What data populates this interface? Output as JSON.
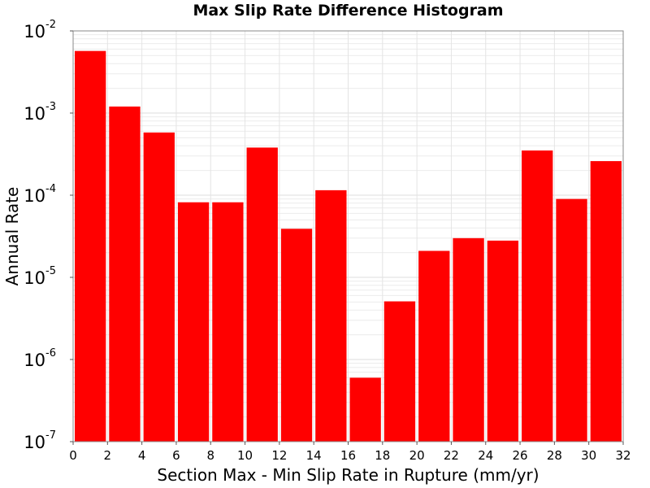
{
  "chart_data": {
    "type": "bar",
    "title": "Max Slip Rate Difference Histogram",
    "xlabel": "Section Max - Min Slip Rate in Rupture (mm/yr)",
    "ylabel": "Annual Rate",
    "xlim": [
      0,
      32
    ],
    "ylim": [
      1e-07,
      0.01
    ],
    "y_scale": "log",
    "grid": true,
    "bar_color": "#ff0000",
    "bar_width": 2,
    "x_ticks": [
      0,
      2,
      4,
      6,
      8,
      10,
      12,
      14,
      16,
      18,
      20,
      22,
      24,
      26,
      28,
      30,
      32
    ],
    "y_ticks": [
      {
        "base": "10",
        "exp": "-7",
        "value": 1e-07
      },
      {
        "base": "10",
        "exp": "-6",
        "value": 1e-06
      },
      {
        "base": "10",
        "exp": "-5",
        "value": 1e-05
      },
      {
        "base": "10",
        "exp": "-4",
        "value": 0.0001
      },
      {
        "base": "10",
        "exp": "-3",
        "value": 0.001
      },
      {
        "base": "10",
        "exp": "-2",
        "value": 0.01
      }
    ],
    "bins": [
      {
        "x": 1,
        "value": 0.0057
      },
      {
        "x": 3,
        "value": 0.0012
      },
      {
        "x": 5,
        "value": 0.00058
      },
      {
        "x": 7,
        "value": 8.2e-05
      },
      {
        "x": 9,
        "value": 8.2e-05
      },
      {
        "x": 11,
        "value": 0.00038
      },
      {
        "x": 13,
        "value": 3.9e-05
      },
      {
        "x": 15,
        "value": 0.000115
      },
      {
        "x": 17,
        "value": 6e-07
      },
      {
        "x": 19,
        "value": 5.1e-06
      },
      {
        "x": 21,
        "value": 2.1e-05
      },
      {
        "x": 23,
        "value": 3e-05
      },
      {
        "x": 25,
        "value": 2.8e-05
      },
      {
        "x": 27,
        "value": 0.00035
      },
      {
        "x": 29,
        "value": 9e-05
      },
      {
        "x": 31,
        "value": 0.00026
      }
    ]
  }
}
